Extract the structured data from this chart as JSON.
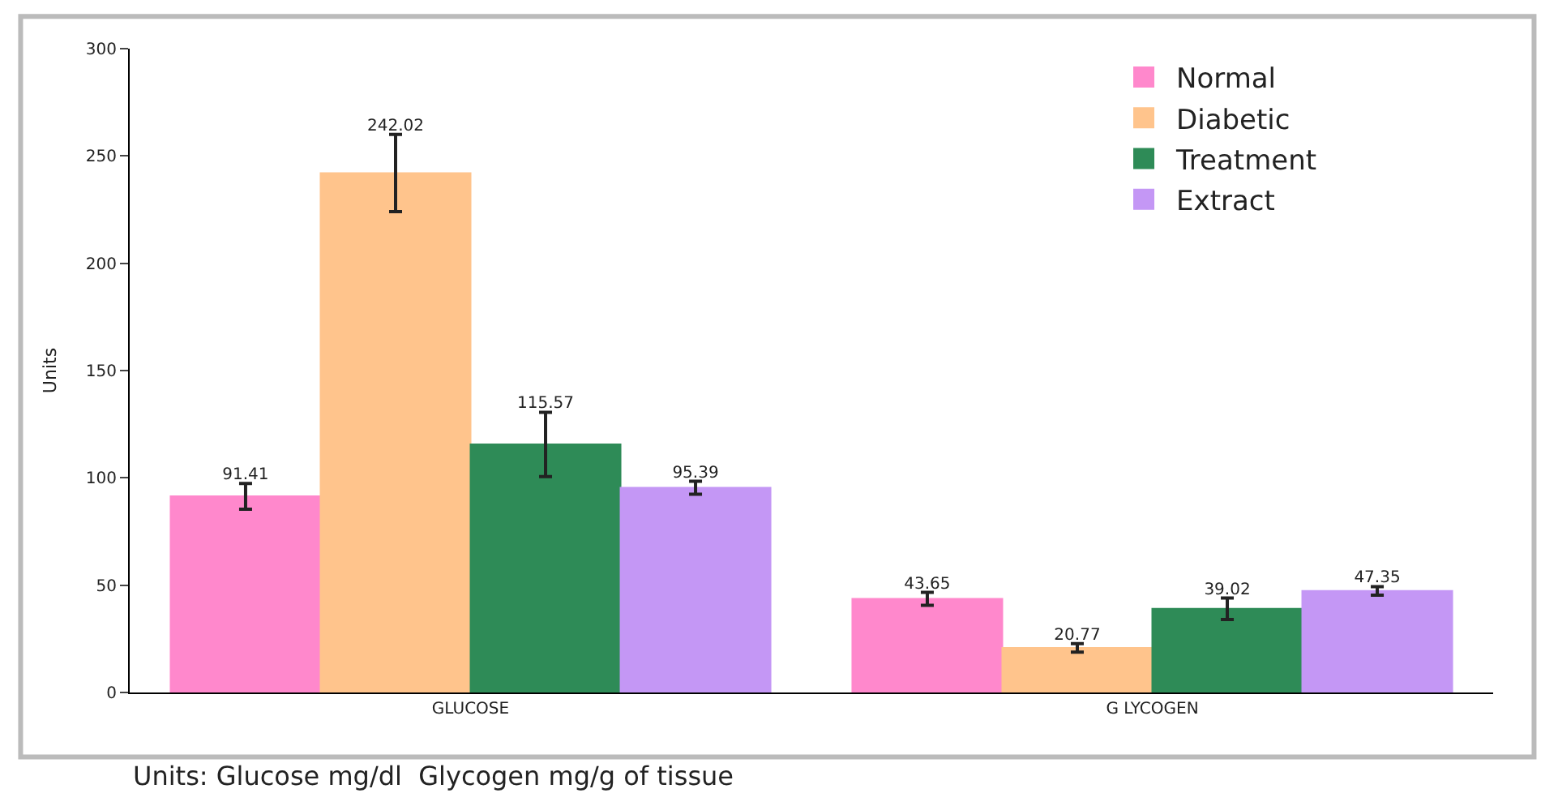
{
  "chart_data": {
    "type": "bar",
    "ylabel": "Units",
    "categories": [
      "GLUCOSE",
      "G LYCOGEN"
    ],
    "series": [
      {
        "name": "Normal",
        "color": "#ff88cc",
        "values": [
          91.41,
          43.65
        ],
        "errors": [
          6,
          3
        ]
      },
      {
        "name": "Diabetic",
        "color": "#ffc48c",
        "values": [
          242.02,
          20.77
        ],
        "errors": [
          18,
          2
        ]
      },
      {
        "name": "Treatment",
        "color": "#2e8b57",
        "values": [
          115.57,
          39.02
        ],
        "errors": [
          15,
          5
        ]
      },
      {
        "name": "Extract",
        "color": "#c497f5",
        "values": [
          95.39,
          47.35
        ],
        "errors": [
          3,
          2
        ]
      }
    ],
    "ylim": [
      0,
      300
    ],
    "yticks": [
      0,
      50,
      100,
      150,
      200,
      250,
      300
    ],
    "data_labels": true,
    "legend": "top right",
    "annotations": [
      "Units: Glucose mg/dl  Glycogen mg/g of tissue"
    ]
  }
}
